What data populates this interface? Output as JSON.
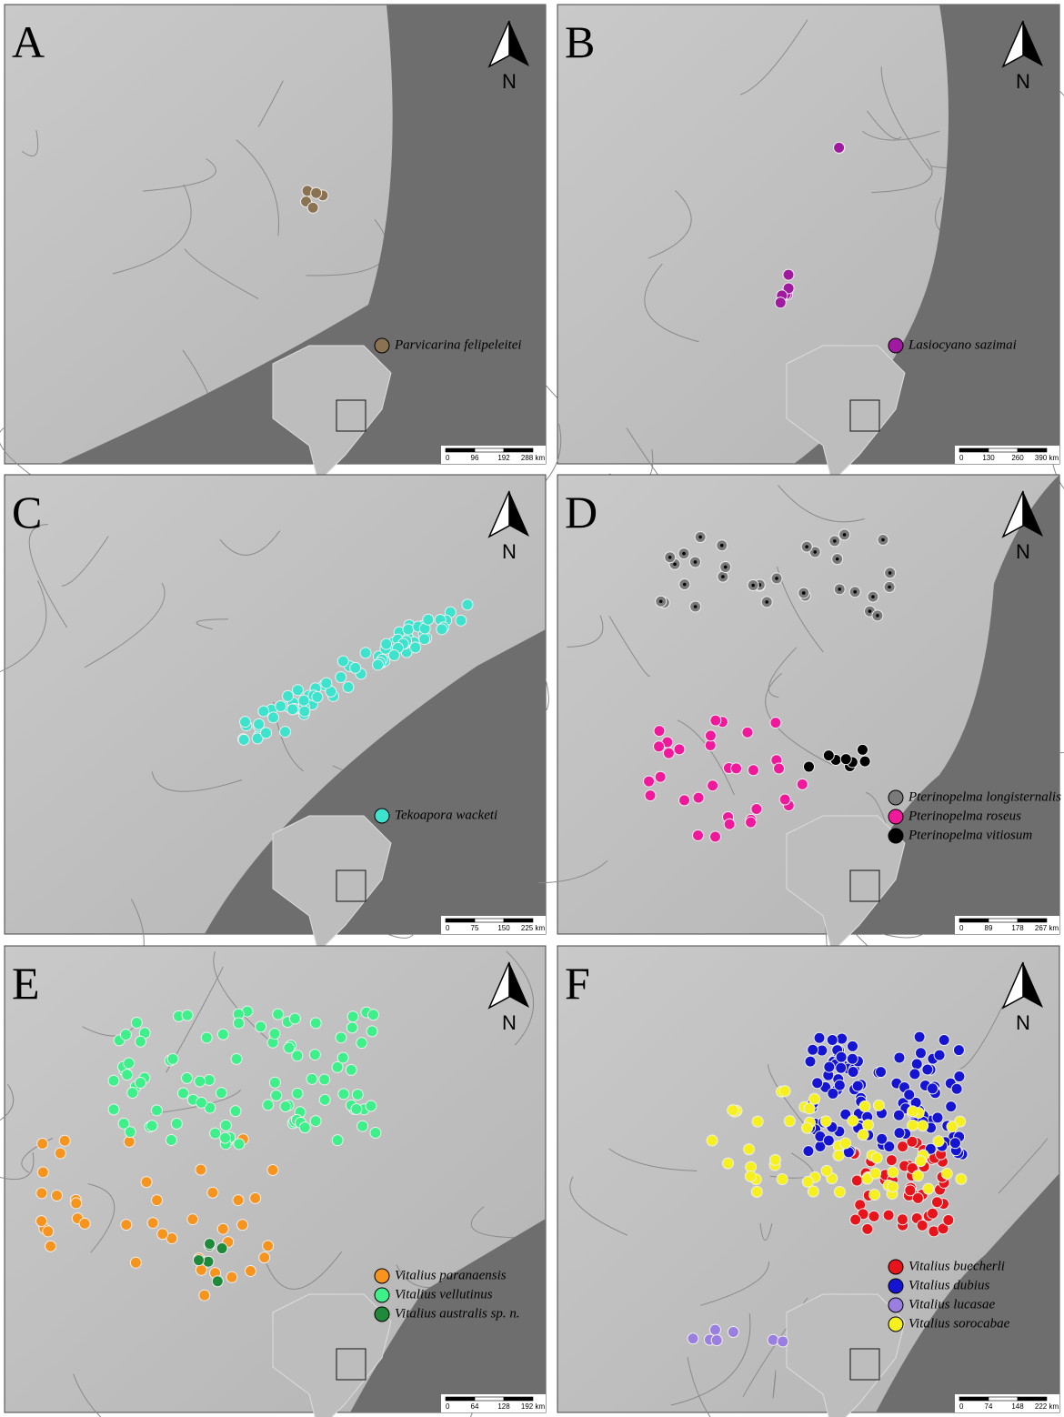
{
  "panels": [
    {
      "label": "A",
      "north": "N",
      "legend": [
        {
          "name": "Parvicarina felipeleitei",
          "color": "#8b7352"
        }
      ],
      "scale": [
        "0",
        "96",
        "192",
        "288 km"
      ]
    },
    {
      "label": "B",
      "north": "N",
      "legend": [
        {
          "name": "Lasiocyano sazimai",
          "color": "#a01aa0"
        }
      ],
      "scale": [
        "0",
        "130",
        "260",
        "390 km"
      ]
    },
    {
      "label": "C",
      "north": "N",
      "legend": [
        {
          "name": "Tekoapora wacketi",
          "color": "#3de3cc"
        }
      ],
      "scale": [
        "0",
        "75",
        "150",
        "225 km"
      ]
    },
    {
      "label": "D",
      "north": "N",
      "legend": [
        {
          "name": "Pterinopelma longisternalis",
          "color": "#7a7a7a"
        },
        {
          "name": "Pterinopelma roseus",
          "color": "#f0199b"
        },
        {
          "name": "Pterinopelma vitiosum",
          "color": "#000000"
        }
      ],
      "scale": [
        "0",
        "89",
        "178",
        "267 km"
      ]
    },
    {
      "label": "E",
      "north": "N",
      "legend": [
        {
          "name": "Vitalius paranaensis",
          "color": "#f7941d"
        },
        {
          "name": "Vitalius vellutinus",
          "color": "#3df08a"
        },
        {
          "name": "Vitalius australis sp. n.",
          "color": "#1f8a3a"
        }
      ],
      "scale": [
        "0",
        "64",
        "128",
        "192 km"
      ]
    },
    {
      "label": "F",
      "north": "N",
      "legend": [
        {
          "name": "Vitalius buecherli",
          "color": "#e8141c"
        },
        {
          "name": "Vitalius dubius",
          "color": "#1414d2"
        },
        {
          "name": "Vitalius lucasae",
          "color": "#9a7fe0"
        },
        {
          "name": "Vitalius sorocabae",
          "color": "#f5f01e"
        }
      ],
      "scale": [
        "0",
        "74",
        "148",
        "222 km"
      ]
    }
  ]
}
